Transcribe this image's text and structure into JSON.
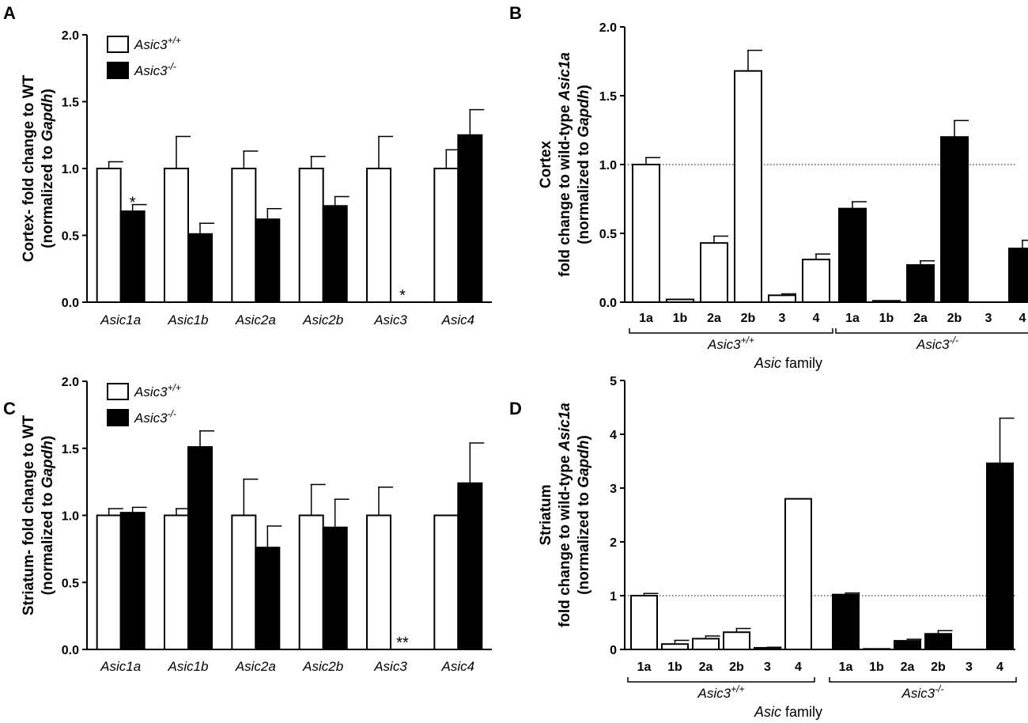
{
  "chart_data": [
    {
      "panel": "A",
      "type": "bar",
      "ylabel": [
        "Cortex- fold change to WT",
        "(normalized to ",
        "Gapdh",
        ")"
      ],
      "ylim": [
        0,
        2.0
      ],
      "yticks": [
        "0.0",
        "0.5",
        "1.0",
        "1.5",
        "2.0"
      ],
      "categories": [
        "Asic1a",
        "Asic1b",
        "Asic2a",
        "Asic2b",
        "Asic3",
        "Asic4"
      ],
      "legend": {
        "open_base": "Asic3",
        "open_sup": "+/+",
        "solid_base": "Asic3",
        "solid_sup": "-/-"
      },
      "series": [
        {
          "name": "Asic3+/+",
          "values": [
            1.0,
            1.0,
            1.0,
            1.0,
            1.0,
            1.0
          ],
          "errors": [
            0.05,
            0.24,
            0.13,
            0.09,
            0.24,
            0.14
          ]
        },
        {
          "name": "Asic3-/-",
          "values": [
            0.68,
            0.51,
            0.62,
            0.72,
            0.0,
            1.25
          ],
          "errors": [
            0.05,
            0.08,
            0.08,
            0.07,
            0.0,
            0.19
          ]
        }
      ],
      "significance": [
        {
          "category": 0,
          "mark": "*"
        },
        {
          "category": 4,
          "mark": "*"
        }
      ]
    },
    {
      "panel": "B",
      "type": "bar",
      "ylabel": [
        "Cortex",
        "fold change to wild-type ",
        "Asic1a",
        "(normalized to ",
        "Gapdh",
        ")"
      ],
      "ylim": [
        0,
        2.0
      ],
      "yticks": [
        "0.0",
        "0.5",
        "1.0",
        "1.5",
        "2.0"
      ],
      "reference_line": 1.0,
      "groups": [
        {
          "label_base": "Asic3",
          "label_sup": "+/+",
          "fill": "open",
          "categories": [
            "1a",
            "1b",
            "2a",
            "2b",
            "3",
            "4"
          ],
          "values": [
            1.0,
            0.02,
            0.43,
            1.68,
            0.05,
            0.31
          ],
          "errors": [
            0.05,
            0.0,
            0.05,
            0.15,
            0.01,
            0.04
          ]
        },
        {
          "label_base": "Asic3",
          "label_sup": "-/-",
          "fill": "solid",
          "categories": [
            "1a",
            "1b",
            "2a",
            "2b",
            "3",
            "4"
          ],
          "values": [
            0.68,
            0.01,
            0.27,
            1.2,
            0.0,
            0.39
          ],
          "errors": [
            0.05,
            0.0,
            0.03,
            0.12,
            0.0,
            0.06
          ]
        }
      ],
      "xlabel_italic": "Asic",
      "xlabel_rest": " family"
    },
    {
      "panel": "C",
      "type": "bar",
      "ylabel": [
        "Striatum- fold change to WT",
        "(normalized to ",
        "Gapdh",
        ")"
      ],
      "ylim": [
        0,
        2.0
      ],
      "yticks": [
        "0.0",
        "0.5",
        "1.0",
        "1.5",
        "2.0"
      ],
      "categories": [
        "Asic1a",
        "Asic1b",
        "Asic2a",
        "Asic2b",
        "Asic3",
        "Asic4"
      ],
      "legend": {
        "open_base": "Asic3",
        "open_sup": "+/+",
        "solid_base": "Asic3",
        "solid_sup": "-/-"
      },
      "series": [
        {
          "name": "Asic3+/+",
          "values": [
            1.0,
            1.0,
            1.0,
            1.0,
            1.0,
            1.0
          ],
          "errors": [
            0.05,
            0.05,
            0.27,
            0.23,
            0.21,
            0.0
          ]
        },
        {
          "name": "Asic3-/-",
          "values": [
            1.02,
            1.51,
            0.76,
            0.91,
            0.0,
            1.24
          ],
          "errors": [
            0.04,
            0.12,
            0.16,
            0.21,
            0.0,
            0.3
          ]
        }
      ],
      "significance": [
        {
          "category": 4,
          "mark": "**"
        }
      ]
    },
    {
      "panel": "D",
      "type": "bar",
      "ylabel": [
        "Striatum",
        "fold change to wild-type ",
        "Asic1a",
        "(normalized to ",
        "Gapdh",
        ")"
      ],
      "ylim": [
        0,
        5
      ],
      "yticks": [
        "0",
        "1",
        "2",
        "3",
        "4",
        "5"
      ],
      "reference_line": 1.0,
      "groups": [
        {
          "label_base": "Asic3",
          "label_sup": "+/+",
          "fill": "open",
          "categories": [
            "1a",
            "1b",
            "2a",
            "2b",
            "3",
            "4"
          ],
          "values": [
            1.0,
            0.1,
            0.2,
            0.32,
            0.03,
            2.8
          ],
          "errors": [
            0.04,
            0.07,
            0.05,
            0.07,
            0.01,
            0.0
          ]
        },
        {
          "label_base": "Asic3",
          "label_sup": "-/-",
          "fill": "solid",
          "categories": [
            "1a",
            "1b",
            "2a",
            "2b",
            "3",
            "4"
          ],
          "values": [
            1.02,
            0.01,
            0.16,
            0.29,
            0.0,
            3.46
          ],
          "errors": [
            0.03,
            0.0,
            0.03,
            0.06,
            0.0,
            0.84
          ]
        }
      ],
      "xlabel_italic": "Asic",
      "xlabel_rest": " family"
    }
  ]
}
